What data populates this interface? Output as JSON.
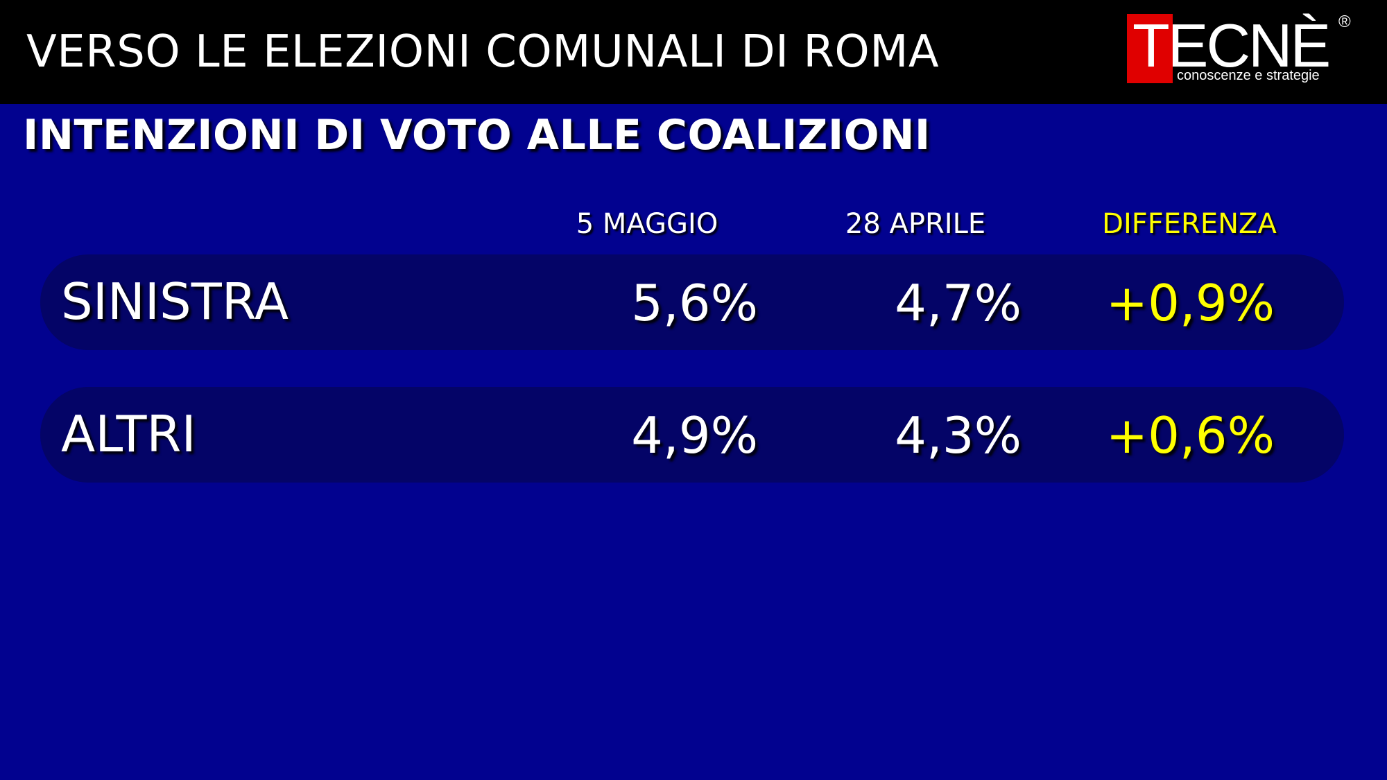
{
  "header": {
    "title": "VERSO LE ELEZIONI COMUNALI DI ROMA",
    "logo": {
      "word": "TECNÈ",
      "registered": "®",
      "tagline": "conoscenze e strategie"
    }
  },
  "subtitle": "INTENZIONI DI VOTO ALLE COALIZIONI",
  "colors": {
    "background": "#02028f",
    "topbar": "#000000",
    "row_bg": "#040467",
    "text": "#ffffff",
    "highlight": "#ffff00",
    "logo_red": "#e00000"
  },
  "chart_data": {
    "type": "table",
    "columns": [
      "5 MAGGIO",
      "28 APRILE",
      "DIFFERENZA"
    ],
    "rows": [
      {
        "label": "SINISTRA",
        "values": [
          "5,6%",
          "4,7%",
          "+0,9%"
        ]
      },
      {
        "label": "ALTRI",
        "values": [
          "4,9%",
          "4,3%",
          "+0,6%"
        ]
      }
    ]
  }
}
